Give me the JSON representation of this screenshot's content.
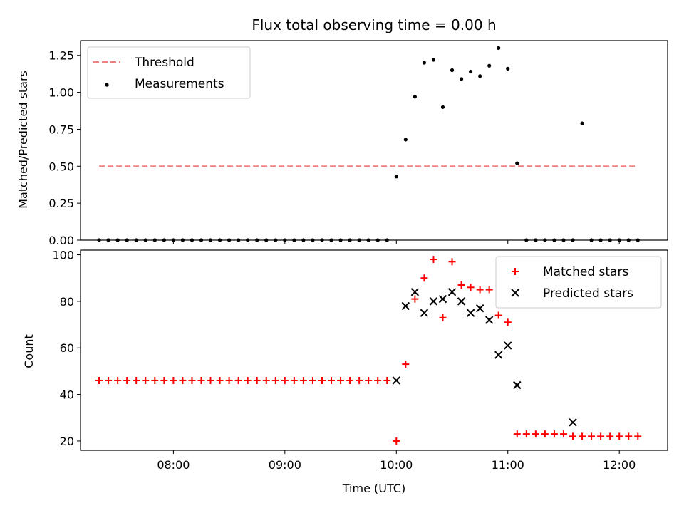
{
  "chart_data": [
    {
      "type": "scatter",
      "title": "Flux total observing time = 0.00 h",
      "xlabel": "",
      "ylabel": "Matched/Predicted stars",
      "xlim": [
        "07:10",
        "12:26"
      ],
      "ylim": [
        0,
        1.35
      ],
      "yticks": [
        "0.00",
        "0.25",
        "0.50",
        "0.75",
        "1.00",
        "1.25"
      ],
      "legend": {
        "placement": "top-left"
      },
      "series": [
        {
          "name": "Threshold",
          "kind": "line",
          "style": "dashed",
          "color": "#f08080",
          "x": [
            "07:20",
            "12:10"
          ],
          "y": [
            0.5,
            0.5
          ]
        },
        {
          "name": "Measurements",
          "kind": "scatter",
          "marker": "dot",
          "color": "#000000",
          "x": [
            "07:20",
            "07:25",
            "07:30",
            "07:35",
            "07:40",
            "07:45",
            "07:50",
            "07:55",
            "08:00",
            "08:05",
            "08:10",
            "08:15",
            "08:20",
            "08:25",
            "08:30",
            "08:35",
            "08:40",
            "08:45",
            "08:50",
            "08:55",
            "09:00",
            "09:05",
            "09:10",
            "09:15",
            "09:20",
            "09:25",
            "09:30",
            "09:35",
            "09:40",
            "09:45",
            "09:50",
            "09:55",
            "10:00",
            "10:05",
            "10:10",
            "10:15",
            "10:20",
            "10:25",
            "10:30",
            "10:35",
            "10:40",
            "10:45",
            "10:50",
            "10:55",
            "11:00",
            "11:05",
            "11:10",
            "11:15",
            "11:20",
            "11:25",
            "11:30",
            "11:35",
            "11:40",
            "11:45",
            "11:50",
            "11:55",
            "12:00",
            "12:05",
            "12:10"
          ],
          "y": [
            0,
            0,
            0,
            0,
            0,
            0,
            0,
            0,
            0,
            0,
            0,
            0,
            0,
            0,
            0,
            0,
            0,
            0,
            0,
            0,
            0,
            0,
            0,
            0,
            0,
            0,
            0,
            0,
            0,
            0,
            0,
            0,
            0.43,
            0.68,
            0.97,
            1.2,
            1.22,
            0.9,
            1.15,
            1.09,
            1.14,
            1.11,
            1.18,
            1.3,
            1.16,
            0.52,
            0,
            0,
            0,
            0,
            0,
            0,
            0.79,
            0,
            0,
            0,
            0,
            0,
            0
          ]
        }
      ]
    },
    {
      "type": "scatter",
      "title": "",
      "xlabel": "Time (UTC)",
      "ylabel": "Count",
      "xlim": [
        "07:10",
        "12:26"
      ],
      "ylim": [
        16,
        102
      ],
      "yticks": [
        "20",
        "40",
        "60",
        "80",
        "100"
      ],
      "xticks": [
        "08:00",
        "09:00",
        "10:00",
        "11:00",
        "12:00"
      ],
      "legend": {
        "placement": "top-right"
      },
      "series": [
        {
          "name": "Matched stars",
          "kind": "scatter",
          "marker": "plus",
          "color": "#ff0000",
          "x": [
            "07:20",
            "07:25",
            "07:30",
            "07:35",
            "07:40",
            "07:45",
            "07:50",
            "07:55",
            "08:00",
            "08:05",
            "08:10",
            "08:15",
            "08:20",
            "08:25",
            "08:30",
            "08:35",
            "08:40",
            "08:45",
            "08:50",
            "08:55",
            "09:00",
            "09:05",
            "09:10",
            "09:15",
            "09:20",
            "09:25",
            "09:30",
            "09:35",
            "09:40",
            "09:45",
            "09:50",
            "09:55",
            "10:00",
            "10:05",
            "10:10",
            "10:15",
            "10:20",
            "10:25",
            "10:30",
            "10:35",
            "10:40",
            "10:45",
            "10:50",
            "10:55",
            "11:00",
            "11:05",
            "11:10",
            "11:15",
            "11:20",
            "11:25",
            "11:30",
            "11:35",
            "11:40",
            "11:45",
            "11:50",
            "11:55",
            "12:00",
            "12:05",
            "12:10"
          ],
          "y": [
            46,
            46,
            46,
            46,
            46,
            46,
            46,
            46,
            46,
            46,
            46,
            46,
            46,
            46,
            46,
            46,
            46,
            46,
            46,
            46,
            46,
            46,
            46,
            46,
            46,
            46,
            46,
            46,
            46,
            46,
            46,
            46,
            20,
            53,
            81,
            90,
            98,
            73,
            97,
            87,
            86,
            85,
            85,
            74,
            71,
            23,
            23,
            23,
            23,
            23,
            23,
            22,
            22,
            22,
            22,
            22,
            22,
            22,
            22
          ]
        },
        {
          "name": "Predicted stars",
          "kind": "scatter",
          "marker": "x",
          "color": "#000000",
          "x": [
            "10:00",
            "10:05",
            "10:10",
            "10:15",
            "10:20",
            "10:25",
            "10:30",
            "10:35",
            "10:40",
            "10:45",
            "10:50",
            "10:55",
            "11:00",
            "11:05",
            "11:35"
          ],
          "y": [
            46,
            78,
            84,
            75,
            80,
            81,
            84,
            80,
            75,
            77,
            72,
            57,
            61,
            44,
            28
          ]
        }
      ]
    }
  ]
}
